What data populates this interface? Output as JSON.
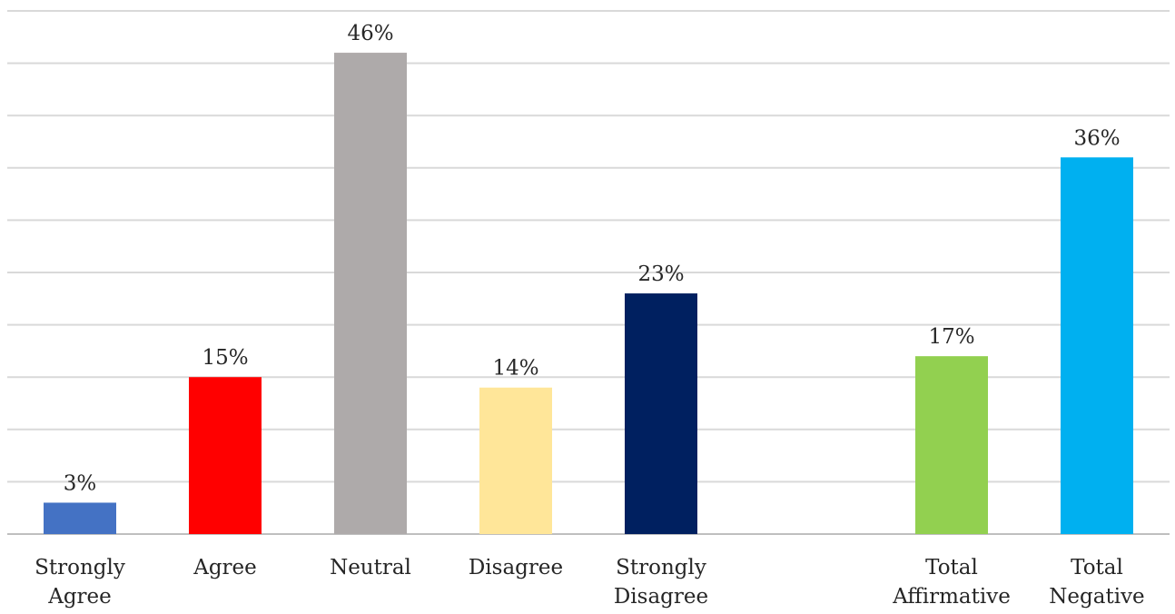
{
  "chart_data": {
    "type": "bar",
    "title": "",
    "xlabel": "",
    "ylabel": "",
    "ylim": [
      0,
      50
    ],
    "grid": true,
    "legend": "none",
    "categories": [
      [
        "Strongly",
        "Agree"
      ],
      [
        "Agree"
      ],
      [
        "Neutral"
      ],
      [
        "Disagree"
      ],
      [
        "Strongly",
        "Disagree"
      ],
      [
        "Total",
        "Affirmative"
      ],
      [
        "Total",
        "Negative"
      ]
    ],
    "values": [
      3,
      15,
      46,
      14,
      23,
      17,
      36
    ],
    "value_labels": [
      "3%",
      "15%",
      "46%",
      "14%",
      "23%",
      "17%",
      "36%"
    ],
    "colors": [
      "#4472c4",
      "#ff0000",
      "#aeaaaa",
      "#ffe699",
      "#002060",
      "#92d050",
      "#00b0f0"
    ]
  }
}
